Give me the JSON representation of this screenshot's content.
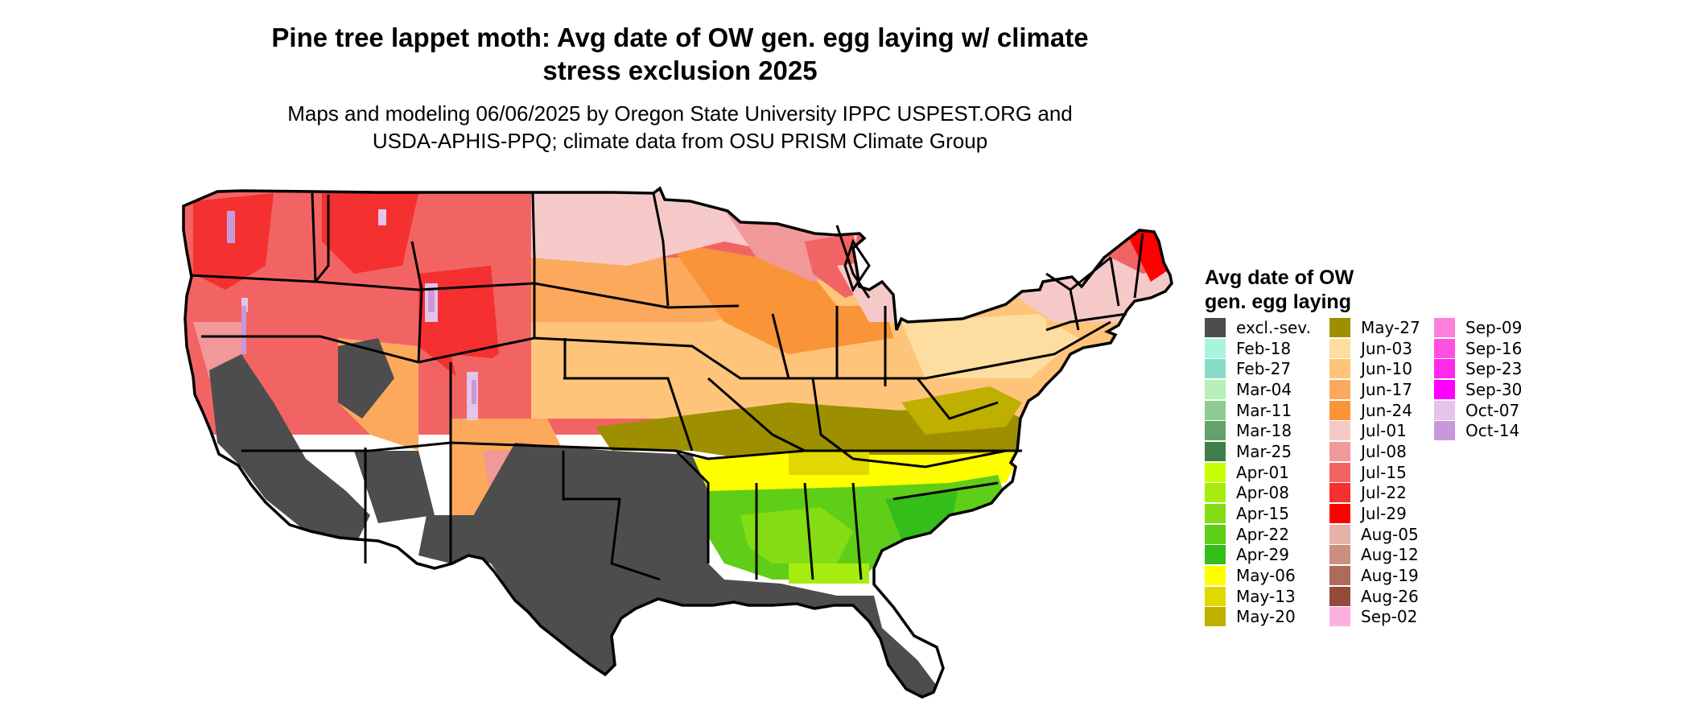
{
  "title_lines": [
    "Pine tree lappet moth: Avg date of OW gen. egg laying w/ climate",
    "stress exclusion 2025"
  ],
  "subtitle_lines": [
    "Maps and modeling 06/06/2025 by Oregon State University IPPC USPEST.ORG and",
    "USDA-APHIS-PPQ; climate data from OSU PRISM Climate Group"
  ],
  "legend": {
    "title_lines": [
      "Avg date of OW",
      "gen. egg laying"
    ],
    "columns": [
      [
        {
          "label": "excl.-sev.",
          "color": "#4d4d4d"
        },
        {
          "label": "Feb-18",
          "color": "#a6f5dc"
        },
        {
          "label": "Feb-27",
          "color": "#86dec9"
        },
        {
          "label": "Mar-04",
          "color": "#b6f0b6"
        },
        {
          "label": "Mar-11",
          "color": "#8ccc94"
        },
        {
          "label": "Mar-18",
          "color": "#62a36a"
        },
        {
          "label": "Mar-25",
          "color": "#3f7e48"
        },
        {
          "label": "Apr-01",
          "color": "#c8ff00"
        },
        {
          "label": "Apr-08",
          "color": "#a6ec0e"
        },
        {
          "label": "Apr-15",
          "color": "#84dc14"
        },
        {
          "label": "Apr-22",
          "color": "#5fce18"
        },
        {
          "label": "Apr-29",
          "color": "#33be1a"
        },
        {
          "label": "May-06",
          "color": "#ffff00"
        },
        {
          "label": "May-13",
          "color": "#e0d800"
        },
        {
          "label": "May-20",
          "color": "#bfb000"
        }
      ],
      [
        {
          "label": "May-27",
          "color": "#9e8f00"
        },
        {
          "label": "Jun-03",
          "color": "#fedda0"
        },
        {
          "label": "Jun-10",
          "color": "#fec47a"
        },
        {
          "label": "Jun-17",
          "color": "#fca95e"
        },
        {
          "label": "Jun-24",
          "color": "#f99438"
        },
        {
          "label": "Jul-01",
          "color": "#f6c9c9"
        },
        {
          "label": "Jul-08",
          "color": "#f19898"
        },
        {
          "label": "Jul-15",
          "color": "#f26464"
        },
        {
          "label": "Jul-22",
          "color": "#f43030"
        },
        {
          "label": "Jul-29",
          "color": "#ff0000"
        },
        {
          "label": "Aug-05",
          "color": "#e6b2a6"
        },
        {
          "label": "Aug-12",
          "color": "#cc8e80"
        },
        {
          "label": "Aug-19",
          "color": "#b06a5c"
        },
        {
          "label": "Aug-26",
          "color": "#944a3a"
        },
        {
          "label": "Sep-02",
          "color": "#fcb0e0"
        }
      ],
      [
        {
          "label": "Sep-09",
          "color": "#fe80dc"
        },
        {
          "label": "Sep-16",
          "color": "#ff50e0"
        },
        {
          "label": "Sep-23",
          "color": "#ff28ec"
        },
        {
          "label": "Sep-30",
          "color": "#ff00ff"
        },
        {
          "label": "Oct-07",
          "color": "#e4c4e8"
        },
        {
          "label": "Oct-14",
          "color": "#c898d8"
        }
      ]
    ]
  }
}
